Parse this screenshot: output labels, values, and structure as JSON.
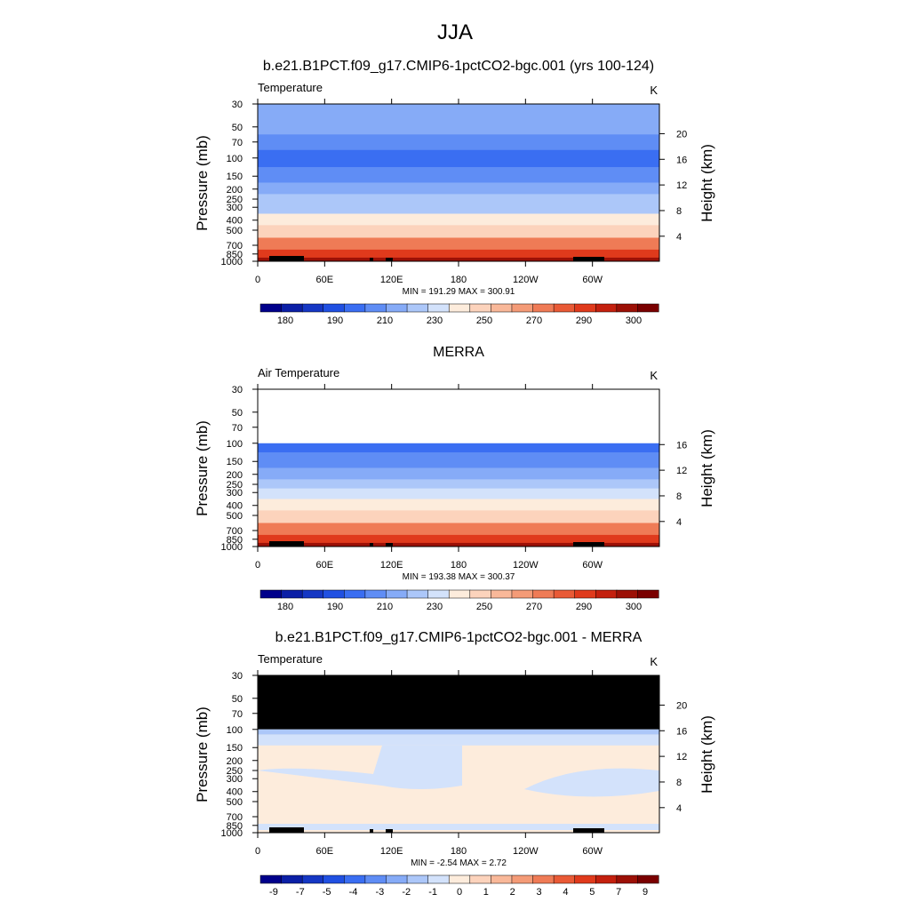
{
  "figure": {
    "main_title": "JJA"
  },
  "colors": {
    "abs_levels": [
      "#00008b",
      "#0b1fa6",
      "#1537c4",
      "#2050e2",
      "#3a6ef2",
      "#5f8df5",
      "#86abf7",
      "#acc7f9",
      "#d3e2fb",
      "#fdecdc",
      "#fcd3bc",
      "#f9b899",
      "#f49b77",
      "#ef7b56",
      "#e95a36",
      "#e03a1c",
      "#c4200e",
      "#9c1006",
      "#7a0000"
    ],
    "diff_levels": [
      "#00008b",
      "#0b1fa6",
      "#1537c4",
      "#2050e2",
      "#3a6ef2",
      "#5f8df5",
      "#86abf7",
      "#acc7f9",
      "#d3e2fb",
      "#fdecdc",
      "#fcd3bc",
      "#f9b899",
      "#f49b77",
      "#ef7b56",
      "#e95a36",
      "#e03a1c",
      "#c4200e",
      "#9c1006",
      "#7a0000"
    ],
    "missing": "#000000"
  },
  "chart_data": [
    {
      "type": "heatmap",
      "title": "b.e21.B1PCT.f09_g17.CMIP6-1pctCO2-bgc.001 (yrs 100-124)",
      "left_label": "Temperature",
      "right_label": "K",
      "ylabel": "Pressure (mb)",
      "ylabel_right": "Height (km)",
      "x_ticks": [
        "0",
        "60E",
        "120E",
        "180",
        "120W",
        "60W"
      ],
      "p_ticks": [
        "30",
        "50",
        "70",
        "100",
        "150",
        "200",
        "250",
        "300",
        "400",
        "500",
        "700",
        "850",
        "1000"
      ],
      "h_ticks": [
        "4",
        "8",
        "12",
        "16",
        "20"
      ],
      "stats": "MIN = 191.29  MAX = 300.91",
      "min": 191.29,
      "max": 300.91,
      "top_pressure": 30,
      "levels": [
        "30",
        "50",
        "70",
        "100",
        "150",
        "200",
        "250",
        "300",
        "400",
        "500",
        "700",
        "850",
        "1000"
      ],
      "zonal_mean_K": [
        217,
        212,
        203,
        198,
        208,
        217,
        223,
        229,
        245,
        257,
        275,
        285,
        295
      ],
      "colorbar_labels": [
        "180",
        "190",
        "210",
        "230",
        "250",
        "270",
        "290",
        "300"
      ]
    },
    {
      "type": "heatmap",
      "title": "MERRA",
      "left_label": "Air Temperature",
      "right_label": "K",
      "ylabel": "Pressure (mb)",
      "ylabel_right": "Height (km)",
      "x_ticks": [
        "0",
        "60E",
        "120E",
        "180",
        "120W",
        "60W"
      ],
      "p_ticks": [
        "30",
        "50",
        "70",
        "100",
        "150",
        "200",
        "250",
        "300",
        "400",
        "500",
        "700",
        "850",
        "1000"
      ],
      "h_ticks": [
        "4",
        "8",
        "12",
        "16"
      ],
      "stats": "MIN = 193.38  MAX = 300.37",
      "min": 193.38,
      "max": 300.37,
      "top_pressure": 100,
      "levels": [
        "100",
        "150",
        "200",
        "250",
        "300",
        "400",
        "500",
        "700",
        "850",
        "1000"
      ],
      "zonal_mean_K": [
        199,
        208,
        217,
        224,
        230,
        245,
        258,
        275,
        285,
        295
      ],
      "colorbar_labels": [
        "180",
        "190",
        "210",
        "230",
        "250",
        "270",
        "290",
        "300"
      ]
    },
    {
      "type": "heatmap",
      "title": "b.e21.B1PCT.f09_g17.CMIP6-1pctCO2-bgc.001 - MERRA",
      "left_label": "Temperature",
      "right_label": "K",
      "ylabel": "Pressure (mb)",
      "ylabel_right": "Height (km)",
      "x_ticks": [
        "0",
        "60E",
        "120E",
        "180",
        "120W",
        "60W"
      ],
      "p_ticks": [
        "30",
        "50",
        "70",
        "100",
        "150",
        "200",
        "250",
        "300",
        "400",
        "500",
        "700",
        "850",
        "1000"
      ],
      "h_ticks": [
        "4",
        "8",
        "12",
        "16",
        "20"
      ],
      "stats": "MIN =  -2.54  MAX =   2.72",
      "min": -2.54,
      "max": 2.72,
      "missing_above_pressure": 100,
      "colorbar_labels": [
        "-9",
        "-7",
        "-5",
        "-4",
        "-3",
        "-2",
        "-1",
        "0",
        "1",
        "2",
        "3",
        "4",
        "5",
        "7",
        "9"
      ]
    }
  ]
}
